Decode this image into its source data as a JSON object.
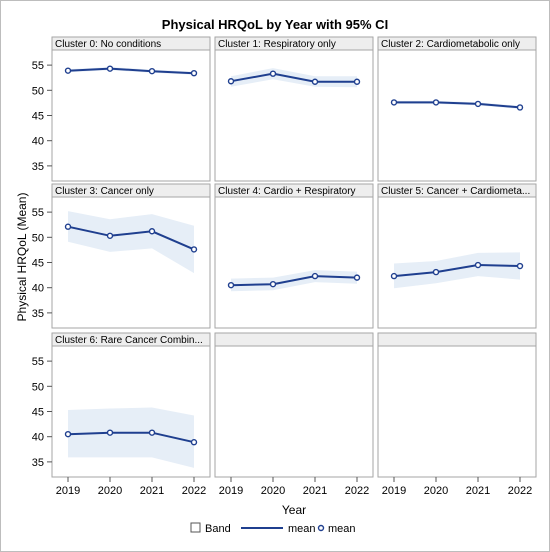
{
  "chart_data": {
    "type": "line",
    "title": "Physical HRQoL by Year with 95% CI",
    "xlabel": "Year",
    "ylabel": "Physical HRQoL (Mean)",
    "x": [
      "2019",
      "2020",
      "2021",
      "2022"
    ],
    "ylim": [
      32,
      58
    ],
    "yticks": [
      35,
      40,
      45,
      50,
      55
    ],
    "grid": false,
    "legend_position": "bottom",
    "legend": [
      "Band",
      "mean",
      "mean"
    ],
    "colors": {
      "line": "#1f3f8f",
      "band": "#e6eef7",
      "panel_header": "#eeeeee",
      "border": "#a6a6a6"
    },
    "panels": [
      {
        "label": "Cluster 0: No conditions",
        "mean": [
          53.9,
          54.3,
          53.8,
          53.4
        ],
        "lower": [
          53.6,
          54.0,
          53.5,
          53.1
        ],
        "upper": [
          54.2,
          54.6,
          54.1,
          53.7
        ]
      },
      {
        "label": "Cluster 1: Respiratory only",
        "mean": [
          51.8,
          53.3,
          51.7,
          51.7
        ],
        "lower": [
          50.7,
          52.2,
          50.7,
          50.6
        ],
        "upper": [
          52.8,
          54.4,
          52.8,
          52.8
        ]
      },
      {
        "label": "Cluster 2: Cardiometabolic only",
        "mean": [
          47.6,
          47.6,
          47.3,
          46.6
        ],
        "lower": [
          47.3,
          47.3,
          47.0,
          46.3
        ],
        "upper": [
          47.9,
          47.9,
          47.6,
          46.9
        ]
      },
      {
        "label": "Cluster 3: Cancer only",
        "mean": [
          52.1,
          50.3,
          51.2,
          47.6
        ],
        "lower": [
          49.1,
          47.1,
          47.8,
          42.9
        ],
        "upper": [
          55.2,
          53.6,
          54.6,
          52.3
        ]
      },
      {
        "label": "Cluster 4: Cardio + Respiratory",
        "mean": [
          40.5,
          40.7,
          42.3,
          42.0
        ],
        "lower": [
          39.3,
          39.5,
          41.1,
          40.8
        ],
        "upper": [
          41.8,
          42.0,
          43.5,
          43.2
        ]
      },
      {
        "label": "Cluster 5: Cancer + Cardiometa...",
        "mean": [
          42.3,
          43.1,
          44.5,
          44.3
        ],
        "lower": [
          39.9,
          40.9,
          42.3,
          41.6
        ],
        "upper": [
          44.8,
          45.3,
          46.9,
          47.0
        ]
      },
      {
        "label": "Cluster 6: Rare Cancer Combin...",
        "mean": [
          40.5,
          40.8,
          40.8,
          38.9
        ],
        "lower": [
          35.9,
          35.9,
          35.9,
          33.8
        ],
        "upper": [
          45.3,
          45.6,
          45.8,
          44.2
        ]
      }
    ]
  }
}
